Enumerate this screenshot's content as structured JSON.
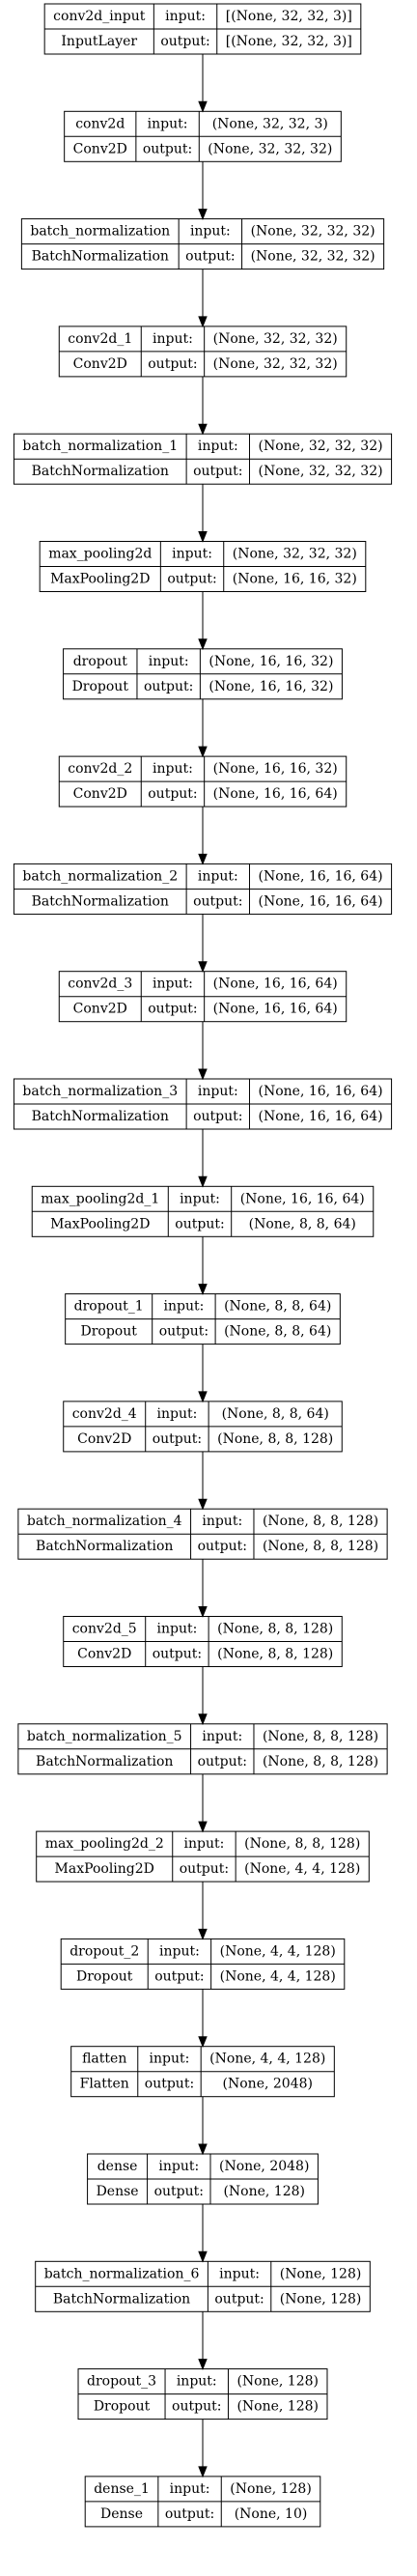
{
  "labels": {
    "input": "input:",
    "output": "output:"
  },
  "colors": {
    "border": "#000000",
    "background": "#ffffff",
    "text": "#000000"
  },
  "layers": [
    {
      "name": "conv2d_input",
      "type": "InputLayer",
      "input": "[(None, 32, 32, 3)]",
      "output": "[(None, 32, 32, 3)]"
    },
    {
      "name": "conv2d",
      "type": "Conv2D",
      "input": "(None, 32, 32, 3)",
      "output": "(None, 32, 32, 32)"
    },
    {
      "name": "batch_normalization",
      "type": "BatchNormalization",
      "input": "(None, 32, 32, 32)",
      "output": "(None, 32, 32, 32)"
    },
    {
      "name": "conv2d_1",
      "type": "Conv2D",
      "input": "(None, 32, 32, 32)",
      "output": "(None, 32, 32, 32)"
    },
    {
      "name": "batch_normalization_1",
      "type": "BatchNormalization",
      "input": "(None, 32, 32, 32)",
      "output": "(None, 32, 32, 32)"
    },
    {
      "name": "max_pooling2d",
      "type": "MaxPooling2D",
      "input": "(None, 32, 32, 32)",
      "output": "(None, 16, 16, 32)"
    },
    {
      "name": "dropout",
      "type": "Dropout",
      "input": "(None, 16, 16, 32)",
      "output": "(None, 16, 16, 32)"
    },
    {
      "name": "conv2d_2",
      "type": "Conv2D",
      "input": "(None, 16, 16, 32)",
      "output": "(None, 16, 16, 64)"
    },
    {
      "name": "batch_normalization_2",
      "type": "BatchNormalization",
      "input": "(None, 16, 16, 64)",
      "output": "(None, 16, 16, 64)"
    },
    {
      "name": "conv2d_3",
      "type": "Conv2D",
      "input": "(None, 16, 16, 64)",
      "output": "(None, 16, 16, 64)"
    },
    {
      "name": "batch_normalization_3",
      "type": "BatchNormalization",
      "input": "(None, 16, 16, 64)",
      "output": "(None, 16, 16, 64)"
    },
    {
      "name": "max_pooling2d_1",
      "type": "MaxPooling2D",
      "input": "(None, 16, 16, 64)",
      "output": "(None, 8, 8, 64)"
    },
    {
      "name": "dropout_1",
      "type": "Dropout",
      "input": "(None, 8, 8, 64)",
      "output": "(None, 8, 8, 64)"
    },
    {
      "name": "conv2d_4",
      "type": "Conv2D",
      "input": "(None, 8, 8, 64)",
      "output": "(None, 8, 8, 128)"
    },
    {
      "name": "batch_normalization_4",
      "type": "BatchNormalization",
      "input": "(None, 8, 8, 128)",
      "output": "(None, 8, 8, 128)"
    },
    {
      "name": "conv2d_5",
      "type": "Conv2D",
      "input": "(None, 8, 8, 128)",
      "output": "(None, 8, 8, 128)"
    },
    {
      "name": "batch_normalization_5",
      "type": "BatchNormalization",
      "input": "(None, 8, 8, 128)",
      "output": "(None, 8, 8, 128)"
    },
    {
      "name": "max_pooling2d_2",
      "type": "MaxPooling2D",
      "input": "(None, 8, 8, 128)",
      "output": "(None, 4, 4, 128)"
    },
    {
      "name": "dropout_2",
      "type": "Dropout",
      "input": "(None, 4, 4, 128)",
      "output": "(None, 4, 4, 128)"
    },
    {
      "name": "flatten",
      "type": "Flatten",
      "input": "(None, 4, 4, 128)",
      "output": "(None, 2048)"
    },
    {
      "name": "dense",
      "type": "Dense",
      "input": "(None, 2048)",
      "output": "(None, 128)"
    },
    {
      "name": "batch_normalization_6",
      "type": "BatchNormalization",
      "input": "(None, 128)",
      "output": "(None, 128)"
    },
    {
      "name": "dropout_3",
      "type": "Dropout",
      "input": "(None, 128)",
      "output": "(None, 128)"
    },
    {
      "name": "dense_1",
      "type": "Dense",
      "input": "(None, 128)",
      "output": "(None, 10)"
    }
  ]
}
